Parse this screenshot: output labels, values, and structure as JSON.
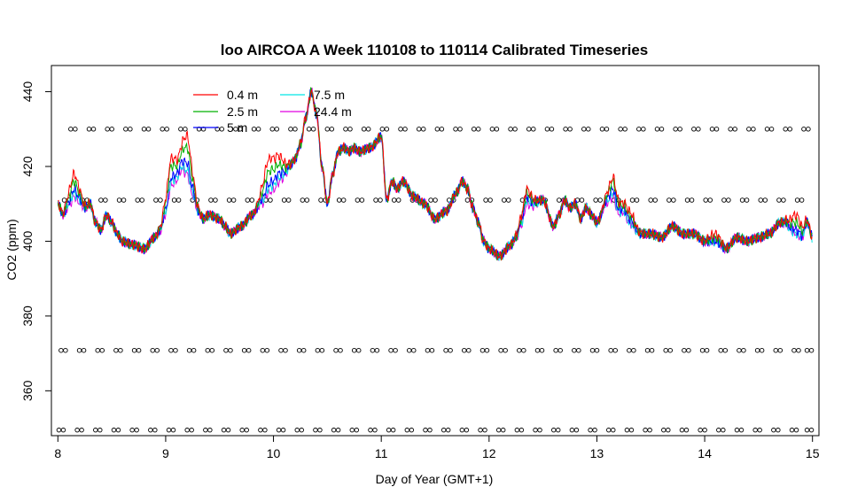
{
  "chart_data": {
    "type": "line",
    "title": "loo AIRCOA A  Week 110108 to 110114  Calibrated Timeseries",
    "xlabel": "Day of Year (GMT+1)",
    "ylabel": "CO2 (ppm)",
    "xlim": [
      7.94,
      15.06
    ],
    "ylim": [
      348,
      447
    ],
    "xticks": [
      8,
      9,
      10,
      11,
      12,
      13,
      14,
      15
    ],
    "yticks": [
      360,
      380,
      400,
      420,
      440
    ],
    "legend": {
      "placement": "top-left",
      "entries": [
        "0.4 m",
        "2.5 m",
        "5 m",
        "7.5 m",
        "24.4 m"
      ]
    },
    "series": [
      {
        "name": "0.4 m",
        "color": "#ff0000",
        "offsets": {
          "9.2": 9,
          "9.05": 6,
          "9.95": 7,
          "10.05": 5,
          "8.15": 5,
          "12.35": 3,
          "13.15": 4,
          "13.3": 3,
          "14.1": 2,
          "14.85": 5
        }
      },
      {
        "name": "2.5 m",
        "color": "#00b000",
        "offsets": {
          "9.2": 6,
          "9.05": 4,
          "9.95": 4,
          "10.05": 3,
          "8.15": 3,
          "12.35": 2,
          "13.15": 3,
          "13.3": 2,
          "14.1": 1,
          "14.85": 3
        }
      },
      {
        "name": "5 m",
        "color": "#0000ff",
        "offsets": {
          "9.2": 2,
          "9.05": 1,
          "9.95": 1,
          "10.05": 1,
          "8.15": 1,
          "12.35": 1,
          "13.15": 1,
          "13.3": 1,
          "14.1": 0,
          "14.85": 1
        }
      },
      {
        "name": "7.5 m",
        "color": "#00e5e5",
        "offsets": {
          "9.2": 0,
          "9.05": 0,
          "9.95": 0,
          "10.05": 0,
          "8.15": 0,
          "12.35": 0,
          "13.15": 0,
          "13.3": 0,
          "14.1": 0,
          "14.85": 0
        }
      },
      {
        "name": "24.4 m",
        "color": "#e000e0",
        "offsets": {
          "9.2": -1,
          "9.05": -1,
          "9.95": -1,
          "10.05": -1,
          "8.15": -1,
          "12.35": -1,
          "13.15": -1,
          "13.3": 0,
          "14.1": 0,
          "14.85": 0
        }
      }
    ],
    "base_curve": {
      "x": [
        8.0,
        8.05,
        8.1,
        8.15,
        8.2,
        8.25,
        8.3,
        8.35,
        8.4,
        8.45,
        8.5,
        8.55,
        8.6,
        8.7,
        8.8,
        8.9,
        8.95,
        9.0,
        9.05,
        9.1,
        9.15,
        9.2,
        9.25,
        9.3,
        9.35,
        9.4,
        9.5,
        9.55,
        9.6,
        9.7,
        9.8,
        9.9,
        9.95,
        10.0,
        10.05,
        10.1,
        10.15,
        10.2,
        10.25,
        10.3,
        10.35,
        10.4,
        10.45,
        10.5,
        10.55,
        10.6,
        10.65,
        10.7,
        10.75,
        10.8,
        10.9,
        11.0,
        11.05,
        11.1,
        11.15,
        11.2,
        11.3,
        11.4,
        11.5,
        11.6,
        11.7,
        11.75,
        11.8,
        11.85,
        11.9,
        11.95,
        12.0,
        12.1,
        12.2,
        12.25,
        12.3,
        12.35,
        12.4,
        12.5,
        12.6,
        12.65,
        12.7,
        12.75,
        12.8,
        12.85,
        12.9,
        12.95,
        13.0,
        13.1,
        13.15,
        13.2,
        13.25,
        13.3,
        13.4,
        13.5,
        13.6,
        13.7,
        13.8,
        13.9,
        14.0,
        14.1,
        14.2,
        14.3,
        14.4,
        14.5,
        14.6,
        14.7,
        14.75,
        14.8,
        14.85,
        14.9,
        14.95,
        15.0
      ],
      "y": [
        410,
        407,
        410,
        413,
        411,
        409,
        410,
        405,
        403,
        407,
        405,
        402,
        400,
        399,
        398,
        401,
        403,
        408,
        416,
        417,
        420,
        419,
        413,
        408,
        406,
        407,
        406,
        404,
        402,
        404,
        407,
        411,
        414,
        415,
        417,
        418,
        420,
        422,
        426,
        433,
        440,
        434,
        420,
        410,
        418,
        424,
        425,
        424,
        425,
        424,
        425,
        428,
        411,
        416,
        414,
        416,
        412,
        410,
        406,
        408,
        413,
        416,
        414,
        409,
        405,
        400,
        398,
        396,
        399,
        401,
        405,
        411,
        410,
        411,
        404,
        407,
        411,
        409,
        410,
        406,
        409,
        407,
        405,
        411,
        413,
        408,
        408,
        405,
        402,
        402,
        401,
        404,
        402,
        402,
        400,
        400,
        398,
        401,
        400,
        401,
        402,
        405,
        405,
        403,
        402,
        401,
        405,
        401
      ]
    },
    "marker_levels": [
      {
        "y": 430,
        "x": [
          8.14,
          8.31,
          8.48,
          8.65,
          8.82,
          8.99,
          9.16,
          9.33,
          9.5,
          9.67,
          9.84,
          10.01,
          10.18,
          10.35,
          10.52,
          10.69,
          10.86,
          11.03,
          11.2,
          11.37,
          11.54,
          11.71,
          11.88,
          12.05,
          12.22,
          12.39,
          12.56,
          12.73,
          12.9,
          13.07,
          13.24,
          13.41,
          13.58,
          13.75,
          13.92,
          14.09,
          14.26,
          14.43,
          14.6,
          14.77,
          14.94
        ]
      },
      {
        "y": 411,
        "x": [
          8.08,
          8.25,
          8.42,
          8.59,
          8.76,
          8.93,
          9.1,
          9.27,
          9.44,
          9.61,
          9.78,
          9.95,
          10.12,
          10.29,
          10.46,
          10.63,
          10.8,
          10.97,
          11.14,
          11.31,
          11.48,
          11.65,
          11.82,
          11.99,
          12.16,
          12.33,
          12.5,
          12.67,
          12.84,
          13.01,
          13.18,
          13.35,
          13.52,
          13.69,
          13.86,
          14.03,
          14.2,
          14.37,
          14.54,
          14.71,
          14.88
        ]
      },
      {
        "y": 370.8,
        "x": [
          8.05,
          8.22,
          8.39,
          8.56,
          8.73,
          8.9,
          9.07,
          9.24,
          9.41,
          9.58,
          9.75,
          9.92,
          10.09,
          10.26,
          10.43,
          10.6,
          10.77,
          10.94,
          11.11,
          11.28,
          11.45,
          11.62,
          11.79,
          11.96,
          12.13,
          12.3,
          12.47,
          12.64,
          12.81,
          12.98,
          13.15,
          13.32,
          13.49,
          13.66,
          13.83,
          14.0,
          14.17,
          14.34,
          14.51,
          14.68,
          14.85,
          14.97
        ]
      },
      {
        "y": 349.5,
        "x": [
          8.03,
          8.2,
          8.37,
          8.54,
          8.71,
          8.88,
          9.05,
          9.22,
          9.39,
          9.56,
          9.73,
          9.9,
          10.07,
          10.24,
          10.41,
          10.58,
          10.75,
          10.92,
          11.09,
          11.26,
          11.43,
          11.6,
          11.77,
          11.94,
          12.11,
          12.28,
          12.45,
          12.62,
          12.79,
          12.96,
          13.13,
          13.3,
          13.47,
          13.64,
          13.81,
          13.98,
          14.15,
          14.32,
          14.49,
          14.66,
          14.83,
          14.97
        ]
      }
    ]
  }
}
